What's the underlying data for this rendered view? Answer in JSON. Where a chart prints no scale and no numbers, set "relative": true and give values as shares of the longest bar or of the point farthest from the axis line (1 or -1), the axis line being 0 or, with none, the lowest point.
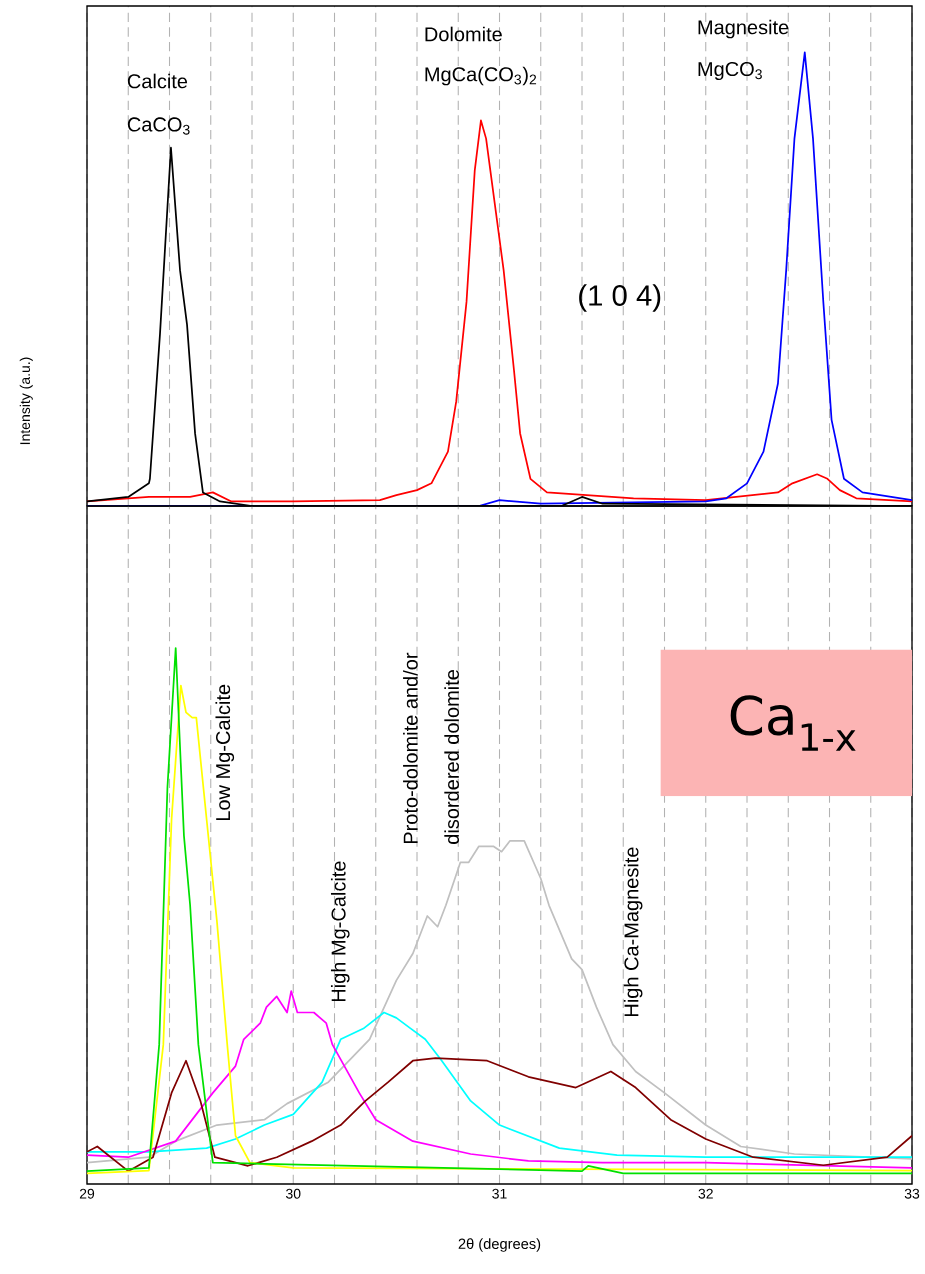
{
  "chart_data": [
    {
      "type": "line",
      "relative": true,
      "ylabel": "Intensity (a.u.)",
      "xlim": [
        29,
        33
      ],
      "tick_labels": false,
      "grid": "x",
      "xticks": [
        29,
        {
          "value": 29.2,
          "label": null
        },
        {
          "value": 29.4,
          "label": null
        },
        {
          "value": 29.6,
          "label": null
        },
        {
          "value": 29.8,
          "label": null
        },
        30,
        {
          "value": 30.2,
          "label": null
        },
        {
          "value": 30.4,
          "label": null
        },
        {
          "value": 30.6,
          "label": null
        },
        {
          "value": 30.8,
          "label": null
        },
        31,
        {
          "value": 31.2,
          "label": null
        },
        {
          "value": 31.4,
          "label": null
        },
        {
          "value": 31.6,
          "label": null
        },
        {
          "value": 31.8,
          "label": null
        },
        32,
        {
          "value": 32.2,
          "label": null
        },
        {
          "value": 32.4,
          "label": null
        },
        {
          "value": 32.6,
          "label": null
        },
        {
          "value": 32.8,
          "label": null
        },
        33
      ],
      "annotations": [
        "Calcite",
        "CaCO$_{3}$",
        "Dolomite",
        "MgCa(CO$_{3}$)$_{2}$",
        "Magnesite",
        "MgCO$_{3}$",
        "(1 0 4)"
      ],
      "series": [
        {
          "color": "#ff0000",
          "x": [
            29.0,
            29.3,
            29.5,
            29.61,
            29.7,
            30.0,
            30.42,
            30.5,
            30.6,
            30.67,
            30.75,
            30.79,
            30.84,
            30.88,
            30.91,
            30.935,
            31.02,
            31.07,
            31.1,
            31.15,
            31.23,
            31.65,
            32.0,
            32.35,
            32.42,
            32.54,
            32.59,
            32.65,
            32.73,
            33.0
          ],
          "values": [
            0.01,
            0.02,
            0.02,
            0.03,
            0.01,
            0.01,
            0.013,
            0.024,
            0.035,
            0.05,
            0.12,
            0.23,
            0.45,
            0.74,
            0.85,
            0.81,
            0.52,
            0.3,
            0.16,
            0.06,
            0.03,
            0.017,
            0.013,
            0.03,
            0.05,
            0.07,
            0.06,
            0.035,
            0.017,
            0.01
          ]
        },
        {
          "color": "#0000ff",
          "x": [
            29.0,
            30.9,
            31.0,
            31.2,
            32.0,
            32.1,
            32.2,
            32.28,
            32.35,
            32.39,
            32.43,
            32.48,
            32.52,
            32.57,
            32.61,
            32.67,
            32.76,
            33.0
          ],
          "values": [
            0.0,
            0.0,
            0.013,
            0.005,
            0.01,
            0.017,
            0.05,
            0.12,
            0.27,
            0.52,
            0.81,
            1.0,
            0.81,
            0.45,
            0.19,
            0.06,
            0.03,
            0.013
          ]
        },
        {
          "color": "#000000",
          "x": [
            29.0,
            29.2,
            29.3,
            29.305,
            29.354,
            29.407,
            29.451,
            29.485,
            29.524,
            29.562,
            29.645,
            29.8,
            31.3,
            31.4,
            31.5,
            33.0
          ],
          "values": [
            0.01,
            0.02,
            0.05,
            0.06,
            0.38,
            0.79,
            0.52,
            0.4,
            0.16,
            0.03,
            0.01,
            0.0,
            0.0,
            0.02,
            0.005,
            0.0
          ]
        }
      ]
    },
    {
      "type": "line",
      "relative": true,
      "xlabel": "2θ (degrees)",
      "xlim": [
        29,
        33
      ],
      "tick_labels": "x",
      "grid": "x",
      "xticks": [
        29,
        {
          "value": 29.2,
          "label": null
        },
        {
          "value": 29.4,
          "label": null
        },
        {
          "value": 29.6,
          "label": null
        },
        {
          "value": 29.8,
          "label": null
        },
        30,
        {
          "value": 30.2,
          "label": null
        },
        {
          "value": 30.4,
          "label": null
        },
        {
          "value": 30.6,
          "label": null
        },
        {
          "value": 30.8,
          "label": null
        },
        31,
        {
          "value": 31.2,
          "label": null
        },
        {
          "value": 31.4,
          "label": null
        },
        {
          "value": 31.6,
          "label": null
        },
        {
          "value": 31.8,
          "label": null
        },
        32,
        {
          "value": 32.2,
          "label": null
        },
        {
          "value": 32.4,
          "label": null
        },
        {
          "value": 32.6,
          "label": null
        },
        {
          "value": 32.8,
          "label": null
        },
        33
      ],
      "annotations": [
        "Low Mg-Calcite",
        "High Mg-Calcite",
        "Proto-dolomite and/or",
        "disordered dolomite",
        "High Ca-Magnesite",
        "Ca$_{1-x}$"
      ],
      "series": [
        {
          "color": "#c0c0c0",
          "x": [
            29.0,
            29.3,
            29.43,
            29.63,
            29.86,
            29.97,
            30.17,
            30.37,
            30.5,
            30.58,
            30.65,
            30.7,
            30.74,
            30.81,
            30.85,
            30.9,
            30.97,
            31.01,
            31.05,
            31.09,
            31.12,
            31.2,
            31.24,
            31.35,
            31.4,
            31.47,
            31.55,
            31.66,
            31.8,
            32.0,
            32.17,
            32.43,
            33.0
          ],
          "values": [
            0.04,
            0.05,
            0.08,
            0.11,
            0.12,
            0.15,
            0.19,
            0.27,
            0.38,
            0.43,
            0.5,
            0.48,
            0.52,
            0.6,
            0.6,
            0.63,
            0.63,
            0.62,
            0.64,
            0.64,
            0.64,
            0.57,
            0.52,
            0.42,
            0.4,
            0.33,
            0.26,
            0.21,
            0.17,
            0.11,
            0.07,
            0.056,
            0.047
          ]
        },
        {
          "color": "#00ffff",
          "x": [
            29.0,
            29.3,
            29.58,
            29.72,
            29.86,
            30.0,
            30.14,
            30.23,
            30.34,
            30.44,
            30.5,
            30.57,
            30.64,
            30.72,
            30.86,
            31.0,
            31.29,
            31.57,
            32.0,
            33.0
          ],
          "values": [
            0.06,
            0.06,
            0.067,
            0.084,
            0.11,
            0.13,
            0.19,
            0.27,
            0.29,
            0.32,
            0.31,
            0.29,
            0.27,
            0.23,
            0.155,
            0.11,
            0.067,
            0.054,
            0.05,
            0.05
          ]
        },
        {
          "color": "#ff00ff",
          "x": [
            29.0,
            29.2,
            29.43,
            29.61,
            29.72,
            29.76,
            29.84,
            29.87,
            29.92,
            29.97,
            29.99,
            30.02,
            30.1,
            30.16,
            30.19,
            30.32,
            30.4,
            30.58,
            30.86,
            31.14,
            31.5,
            32.0,
            33.0
          ],
          "values": [
            0.054,
            0.05,
            0.08,
            0.17,
            0.22,
            0.27,
            0.3,
            0.33,
            0.35,
            0.32,
            0.36,
            0.32,
            0.32,
            0.3,
            0.26,
            0.17,
            0.12,
            0.08,
            0.056,
            0.043,
            0.04,
            0.04,
            0.03
          ]
        },
        {
          "color": "#800000",
          "x": [
            29.0,
            29.05,
            29.2,
            29.32,
            29.41,
            29.48,
            29.55,
            29.62,
            29.78,
            29.92,
            30.09,
            30.23,
            30.35,
            30.46,
            30.58,
            30.69,
            30.94,
            31.14,
            31.37,
            31.54,
            31.66,
            31.83,
            32.0,
            32.23,
            32.57,
            32.88,
            33.0
          ],
          "values": [
            0.06,
            0.07,
            0.024,
            0.05,
            0.17,
            0.23,
            0.155,
            0.05,
            0.034,
            0.05,
            0.08,
            0.11,
            0.155,
            0.19,
            0.23,
            0.235,
            0.23,
            0.2,
            0.18,
            0.21,
            0.18,
            0.12,
            0.084,
            0.05,
            0.035,
            0.05,
            0.09
          ]
        },
        {
          "color": "#ffff00",
          "x": [
            29.0,
            29.3,
            29.37,
            29.41,
            29.455,
            29.48,
            29.51,
            29.53,
            29.58,
            29.63,
            29.68,
            29.72,
            29.79,
            30.0,
            33.0
          ],
          "values": [
            0.02,
            0.025,
            0.26,
            0.68,
            0.93,
            0.88,
            0.87,
            0.87,
            0.68,
            0.49,
            0.26,
            0.09,
            0.04,
            0.03,
            0.025
          ]
        },
        {
          "color": "#00e000",
          "x": [
            29.0,
            29.3,
            29.35,
            29.39,
            29.43,
            29.47,
            29.5,
            29.54,
            29.61,
            31.4,
            31.43,
            31.6,
            33.0
          ],
          "values": [
            0.024,
            0.03,
            0.26,
            0.74,
            1.0,
            0.65,
            0.52,
            0.26,
            0.04,
            0.024,
            0.034,
            0.02,
            0.02
          ]
        }
      ]
    }
  ]
}
